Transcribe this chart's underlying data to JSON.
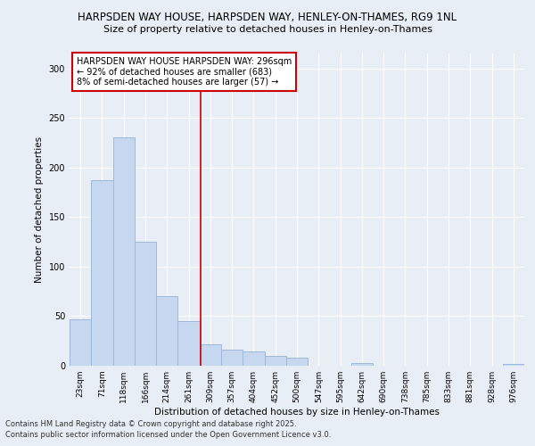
{
  "title_line1": "HARPSDEN WAY HOUSE, HARPSDEN WAY, HENLEY-ON-THAMES, RG9 1NL",
  "title_line2": "Size of property relative to detached houses in Henley-on-Thames",
  "xlabel": "Distribution of detached houses by size in Henley-on-Thames",
  "ylabel": "Number of detached properties",
  "bins": [
    "23sqm",
    "71sqm",
    "118sqm",
    "166sqm",
    "214sqm",
    "261sqm",
    "309sqm",
    "357sqm",
    "404sqm",
    "452sqm",
    "500sqm",
    "547sqm",
    "595sqm",
    "642sqm",
    "690sqm",
    "738sqm",
    "785sqm",
    "833sqm",
    "881sqm",
    "928sqm",
    "976sqm"
  ],
  "values": [
    47,
    187,
    230,
    125,
    70,
    45,
    22,
    16,
    14,
    10,
    8,
    0,
    0,
    3,
    0,
    0,
    0,
    0,
    0,
    0,
    2
  ],
  "bar_color": "#c5d8f0",
  "bar_edge_color": "#a0b8d8",
  "vline_x_index": 5.56,
  "vline_color": "#cc0000",
  "annotation_text": "HARPSDEN WAY HOUSE HARPSDEN WAY: 296sqm\n← 92% of detached houses are smaller (683)\n8% of semi-detached houses are larger (57) →",
  "annotation_box_color": "#ffffff",
  "annotation_box_edge_color": "#cc0000",
  "ylim": [
    0,
    315
  ],
  "yticks": [
    0,
    50,
    100,
    150,
    200,
    250,
    300
  ],
  "bg_color": "#e8eef5",
  "footer_line1": "Contains HM Land Registry data © Crown copyright and database right 2025.",
  "footer_line2": "Contains public sector information licensed under the Open Government Licence v3.0."
}
